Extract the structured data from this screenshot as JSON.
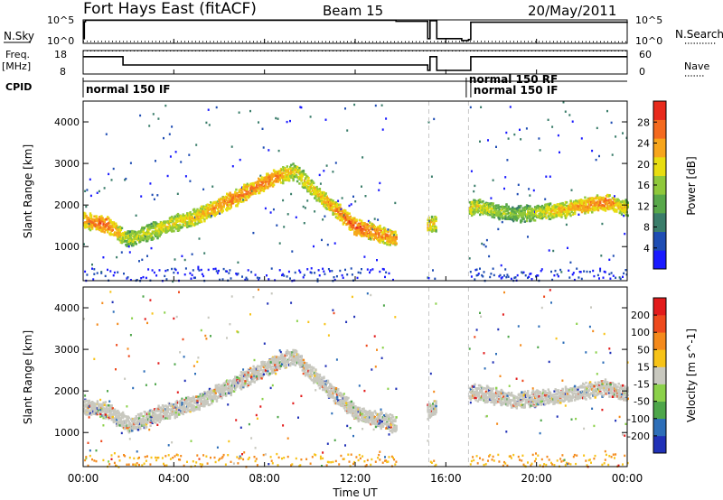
{
  "header": {
    "station": "Fort Hays East (fitACF)",
    "beam": "Beam 15",
    "date": "20/May/2011"
  },
  "left_labels": {
    "nsky": "N.Sky",
    "freq": "Freq.",
    "freq_unit": "[MHz]",
    "cpid": "CPID"
  },
  "right_labels": {
    "nsearch": "N.Search",
    "nave": "Nave"
  },
  "cpid_segments": [
    {
      "label": "normal 150 IF",
      "start_h": 0.0
    },
    {
      "label": "normal 150 RF",
      "start_h": 16.9
    },
    {
      "label": "normal 150 IF",
      "start_h": 17.1
    }
  ],
  "chart_data": [
    {
      "type": "line",
      "name": "noise-panel",
      "y_left_ticks": [
        "10^5",
        "10^0"
      ],
      "y_right_ticks": [
        "10^5",
        "10^0"
      ],
      "series": [
        {
          "name": "N.Sky",
          "style": "solid",
          "x": [
            0.0,
            0.05,
            0.1,
            13.8,
            15.2,
            15.3,
            15.45,
            15.6,
            16.7,
            17.0,
            17.1,
            24.0
          ],
          "y": [
            1.0,
            4.6,
            4.9,
            4.7,
            1.0,
            4.8,
            4.8,
            1.0,
            0.6,
            0.8,
            4.5,
            4.6
          ]
        },
        {
          "name": "N.Search",
          "style": "dotted",
          "x": [
            0.0,
            13.8,
            17.0,
            24.0
          ],
          "y": [
            0.4,
            0.3,
            0.4,
            0.3
          ]
        }
      ]
    },
    {
      "type": "line",
      "name": "frequency-panel",
      "y_left_ticks": [
        "18",
        "8"
      ],
      "y_right_ticks": [
        "60",
        "0"
      ],
      "series": [
        {
          "name": "Freq",
          "style": "solid",
          "x": [
            0.0,
            1.75,
            1.76,
            13.8,
            15.2,
            15.3,
            15.6,
            17.05,
            17.1,
            24.0
          ],
          "y": [
            14.6,
            14.6,
            10.0,
            10.0,
            7.0,
            14.6,
            7.0,
            7.0,
            14.6,
            14.6
          ]
        },
        {
          "name": "Nave",
          "style": "dotted",
          "x": [
            0.0,
            13.8,
            17.0,
            24.0
          ],
          "y": [
            59,
            59,
            59,
            59
          ]
        }
      ]
    },
    {
      "type": "heatmap",
      "name": "power-panel",
      "ylabel": "Slant Range [km]",
      "yticks": [
        "1000",
        "2000",
        "3000",
        "4000"
      ],
      "ylim": [
        180,
        4500
      ],
      "colorbar": {
        "label": "Power [dB]",
        "ticks": [
          "4",
          "8",
          "12",
          "16",
          "20",
          "24",
          "28"
        ],
        "range": [
          0,
          32
        ],
        "colors": [
          "#1a1aff",
          "#1f4db3",
          "#3a7d6a",
          "#58a84a",
          "#8fc83b",
          "#e8dd10",
          "#f7a51b",
          "#f46a1f",
          "#e82a1c"
        ]
      },
      "band": [
        {
          "t": 0.0,
          "r": 1650,
          "p": 24
        },
        {
          "t": 1.0,
          "r": 1550,
          "p": 28
        },
        {
          "t": 2.0,
          "r": 1200,
          "p": 18
        },
        {
          "t": 3.5,
          "r": 1500,
          "p": 20
        },
        {
          "t": 5.0,
          "r": 1750,
          "p": 22
        },
        {
          "t": 6.5,
          "r": 2150,
          "p": 26
        },
        {
          "t": 8.5,
          "r": 2700,
          "p": 26
        },
        {
          "t": 9.3,
          "r": 2850,
          "p": 20
        },
        {
          "t": 10.5,
          "r": 2200,
          "p": 22
        },
        {
          "t": 12.0,
          "r": 1500,
          "p": 28
        },
        {
          "t": 13.8,
          "r": 1200,
          "p": 24
        },
        {
          "t": 17.2,
          "r": 2000,
          "p": 20
        },
        {
          "t": 19.0,
          "r": 1800,
          "p": 16
        },
        {
          "t": 21.0,
          "r": 1900,
          "p": 22
        },
        {
          "t": 23.0,
          "r": 2100,
          "p": 26
        },
        {
          "t": 24.0,
          "r": 1950,
          "p": 20
        }
      ]
    },
    {
      "type": "heatmap",
      "name": "velocity-panel",
      "ylabel": "Slant Range [km]",
      "yticks": [
        "1000",
        "2000",
        "3000",
        "4000"
      ],
      "ylim": [
        180,
        4500
      ],
      "colorbar": {
        "label": "Velocity [m s^-1]",
        "ticks": [
          "200",
          "100",
          "50",
          "15",
          "-15",
          "-50",
          "-100",
          "-200"
        ],
        "range": [
          -250,
          250
        ],
        "colors": [
          "#2031b7",
          "#2d6eb8",
          "#4ea64a",
          "#8bd14a",
          "#c8c8bf",
          "#f7c318",
          "#f48a1c",
          "#ee4a1d",
          "#e21b1b"
        ]
      },
      "band_color": "#c8c8bf"
    }
  ],
  "xaxis": {
    "label": "Time UT",
    "ticks": [
      "00:00",
      "04:00",
      "08:00",
      "12:00",
      "16:00",
      "20:00",
      "00:00"
    ]
  }
}
